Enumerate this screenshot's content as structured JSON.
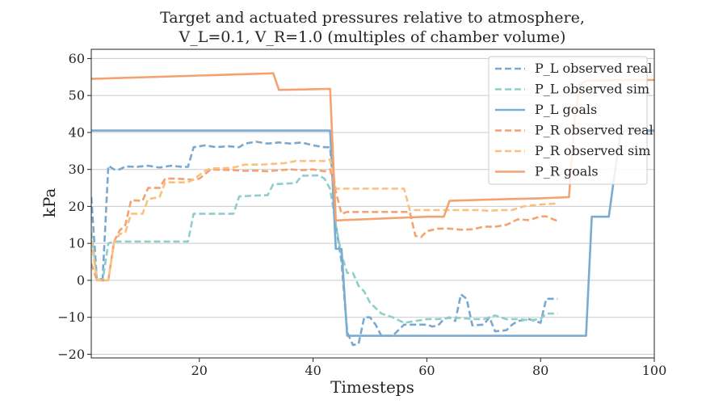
{
  "chart_data": {
    "type": "line",
    "title_line1": "Target and actuated pressures relative to atmosphere,",
    "title_line2": "V_L=0.1,     V_R=1.0 (multiples of chamber volume)",
    "xlabel": "Timesteps",
    "ylabel": "kPa",
    "xlim": [
      1,
      100
    ],
    "ylim": [
      -21,
      62.5
    ],
    "xticks": [
      20,
      40,
      60,
      80,
      100
    ],
    "yticks": [
      -20,
      -10,
      0,
      10,
      20,
      30,
      40,
      50,
      60
    ],
    "grid": "horizontal",
    "legend_position": "top-right",
    "series": [
      {
        "name": "P_L observed real",
        "color": "#7aa8cf",
        "style": "dashed",
        "points": [
          [
            1,
            22.5
          ],
          [
            2,
            0
          ],
          [
            3,
            0.5
          ],
          [
            4,
            31
          ],
          [
            5,
            30
          ],
          [
            6,
            30
          ],
          [
            7,
            30.8
          ],
          [
            9,
            30.7
          ],
          [
            11,
            31
          ],
          [
            13,
            30.5
          ],
          [
            15,
            31
          ],
          [
            17,
            30.7
          ],
          [
            18,
            30.7
          ],
          [
            19,
            36
          ],
          [
            21,
            36.5
          ],
          [
            23,
            36
          ],
          [
            25,
            36.3
          ],
          [
            27,
            36
          ],
          [
            28,
            37
          ],
          [
            30,
            37.5
          ],
          [
            32,
            37
          ],
          [
            34,
            37.3
          ],
          [
            36,
            37
          ],
          [
            38,
            37.3
          ],
          [
            40,
            36.5
          ],
          [
            42,
            36
          ],
          [
            43,
            36
          ],
          [
            44,
            15
          ],
          [
            45,
            5
          ],
          [
            46,
            -14
          ],
          [
            47,
            -17.5
          ],
          [
            48,
            -17.2
          ],
          [
            49,
            -10
          ],
          [
            50,
            -10
          ],
          [
            51,
            -12
          ],
          [
            52,
            -15
          ],
          [
            54,
            -15
          ],
          [
            56,
            -12
          ],
          [
            58,
            -12
          ],
          [
            60,
            -12
          ],
          [
            61,
            -12.5
          ],
          [
            62,
            -12.2
          ],
          [
            63,
            -10.5
          ],
          [
            64,
            -10
          ],
          [
            65,
            -11
          ],
          [
            66,
            -3.8
          ],
          [
            67,
            -5
          ],
          [
            68,
            -12.2
          ],
          [
            70,
            -12
          ],
          [
            71,
            -10
          ],
          [
            72,
            -13.8
          ],
          [
            74,
            -13.5
          ],
          [
            75,
            -12
          ],
          [
            76,
            -11
          ],
          [
            78,
            -10.5
          ],
          [
            80,
            -11.5
          ],
          [
            81,
            -5
          ],
          [
            83,
            -5
          ]
        ]
      },
      {
        "name": "P_L observed sim",
        "color": "#8ecfc9",
        "style": "dashed",
        "points": [
          [
            1,
            13
          ],
          [
            2,
            0.5
          ],
          [
            3,
            0
          ],
          [
            4,
            10
          ],
          [
            5,
            10.5
          ],
          [
            8,
            10.5
          ],
          [
            10,
            10.5
          ],
          [
            12,
            10.5
          ],
          [
            14,
            10.5
          ],
          [
            16,
            10.5
          ],
          [
            18,
            10.5
          ],
          [
            19,
            18
          ],
          [
            20,
            18
          ],
          [
            22,
            18
          ],
          [
            24,
            18
          ],
          [
            26,
            18
          ],
          [
            27,
            22.7
          ],
          [
            31,
            23
          ],
          [
            32,
            23
          ],
          [
            33,
            26
          ],
          [
            37,
            26.3
          ],
          [
            38,
            28.3
          ],
          [
            41,
            28.4
          ],
          [
            42,
            27.5
          ],
          [
            43,
            24.7
          ],
          [
            44,
            15
          ],
          [
            45,
            7
          ],
          [
            46,
            2
          ],
          [
            47,
            2
          ],
          [
            48,
            -1.5
          ],
          [
            49,
            -3
          ],
          [
            50,
            -6
          ],
          [
            52,
            -9
          ],
          [
            54,
            -10
          ],
          [
            56,
            -11.5
          ],
          [
            58,
            -11
          ],
          [
            60,
            -10.5
          ],
          [
            62,
            -10.5
          ],
          [
            64,
            -10.2
          ],
          [
            66,
            -10.2
          ],
          [
            68,
            -10.5
          ],
          [
            70,
            -10.5
          ],
          [
            72,
            -9.5
          ],
          [
            74,
            -10.5
          ],
          [
            76,
            -10.5
          ],
          [
            78,
            -10.8
          ],
          [
            80,
            -10.5
          ],
          [
            81,
            -9
          ],
          [
            83,
            -9
          ]
        ]
      },
      {
        "name": "P_L goals",
        "color": "#7aacd2",
        "style": "solid",
        "points": [
          [
            1,
            40.5
          ],
          [
            2,
            40.5
          ],
          [
            43,
            40.5
          ],
          [
            44,
            8.5
          ],
          [
            45,
            8.5
          ],
          [
            46,
            -15
          ],
          [
            88,
            -15
          ],
          [
            89,
            17.2
          ],
          [
            92,
            17.2
          ],
          [
            93,
            28.5
          ],
          [
            94,
            39.5
          ],
          [
            95,
            40.5
          ],
          [
            100,
            40.5
          ]
        ]
      },
      {
        "name": "P_R observed real",
        "color": "#f4a270",
        "style": "dashed",
        "points": [
          [
            1,
            4.5
          ],
          [
            2,
            0
          ],
          [
            4,
            0
          ],
          [
            5,
            10.5
          ],
          [
            6,
            13.5
          ],
          [
            7,
            15
          ],
          [
            8,
            21.7
          ],
          [
            10,
            21.5
          ],
          [
            11,
            25
          ],
          [
            13,
            25
          ],
          [
            14,
            27.5
          ],
          [
            16,
            27.5
          ],
          [
            18,
            27.3
          ],
          [
            19,
            27.2
          ],
          [
            20,
            27.5
          ],
          [
            22,
            30
          ],
          [
            26,
            29.8
          ],
          [
            28,
            29.6
          ],
          [
            30,
            29.7
          ],
          [
            32,
            29.5
          ],
          [
            34,
            29.8
          ],
          [
            36,
            30
          ],
          [
            38,
            29.8
          ],
          [
            40,
            30
          ],
          [
            42,
            29.5
          ],
          [
            43,
            30
          ],
          [
            44,
            24
          ],
          [
            45,
            18
          ],
          [
            46,
            18.5
          ],
          [
            50,
            18.5
          ],
          [
            54,
            18.5
          ],
          [
            57,
            18.5
          ],
          [
            58,
            12
          ],
          [
            59,
            11.7
          ],
          [
            60,
            13.3
          ],
          [
            62,
            14
          ],
          [
            64,
            14
          ],
          [
            66,
            13.7
          ],
          [
            68,
            13.8
          ],
          [
            70,
            14.5
          ],
          [
            72,
            14.5
          ],
          [
            74,
            15
          ],
          [
            76,
            16.5
          ],
          [
            78,
            16.3
          ],
          [
            80,
            17.3
          ],
          [
            81,
            17.3
          ],
          [
            83,
            16
          ]
        ]
      },
      {
        "name": "P_R observed sim",
        "color": "#fcc07e",
        "style": "dashed",
        "points": [
          [
            1,
            11
          ],
          [
            2,
            0
          ],
          [
            4,
            0
          ],
          [
            5,
            10.3
          ],
          [
            6,
            12.5
          ],
          [
            7,
            13
          ],
          [
            8,
            18
          ],
          [
            10,
            18
          ],
          [
            11,
            22
          ],
          [
            13,
            22.5
          ],
          [
            14,
            26.5
          ],
          [
            16,
            26.5
          ],
          [
            18,
            26.5
          ],
          [
            19,
            27.3
          ],
          [
            21,
            29.6
          ],
          [
            22,
            30.3
          ],
          [
            24,
            30.3
          ],
          [
            26,
            30.5
          ],
          [
            28,
            31.3
          ],
          [
            31,
            31.3
          ],
          [
            33,
            31.5
          ],
          [
            35,
            31.7
          ],
          [
            37,
            32.3
          ],
          [
            40,
            32.3
          ],
          [
            42,
            32.3
          ],
          [
            43,
            32.7
          ],
          [
            44,
            24.8
          ],
          [
            47,
            24.8
          ],
          [
            50,
            24.8
          ],
          [
            53,
            24.8
          ],
          [
            56,
            24.8
          ],
          [
            57,
            19
          ],
          [
            60,
            19
          ],
          [
            63,
            19
          ],
          [
            65,
            19
          ],
          [
            67,
            19
          ],
          [
            69,
            19
          ],
          [
            71,
            18.8
          ],
          [
            73,
            19
          ],
          [
            75,
            19
          ],
          [
            77,
            20
          ],
          [
            80,
            20.5
          ],
          [
            83,
            20.8
          ]
        ]
      },
      {
        "name": "P_R goals",
        "color": "#f4a270",
        "style": "solid",
        "points": [
          [
            1,
            54.5
          ],
          [
            33,
            56
          ],
          [
            34,
            51.5
          ],
          [
            40,
            51.7
          ],
          [
            43,
            51.8
          ],
          [
            44,
            16.2
          ],
          [
            60,
            17.2
          ],
          [
            63,
            17.2
          ],
          [
            64,
            21.5
          ],
          [
            70,
            21.8
          ],
          [
            75,
            22
          ],
          [
            80,
            22.2
          ],
          [
            85,
            22.5
          ],
          [
            86,
            44
          ],
          [
            87,
            53
          ],
          [
            88,
            54
          ],
          [
            95,
            54.2
          ],
          [
            100,
            54.2
          ]
        ]
      }
    ]
  }
}
